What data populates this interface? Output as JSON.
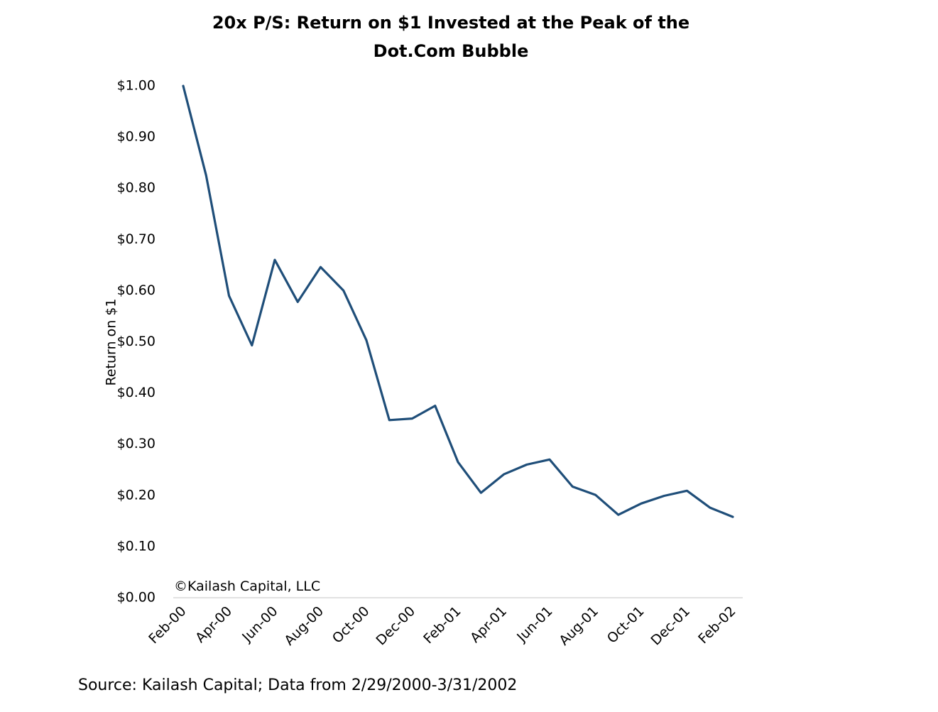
{
  "chart_data": {
    "type": "line",
    "title_lines": [
      "20x P/S: Return on $1 Invested at the Peak of the",
      "Dot.Com Bubble"
    ],
    "ylabel": "Return on $1",
    "ylim": [
      0,
      1.0
    ],
    "y_ticks": [
      "$0.00",
      "$0.10",
      "$0.20",
      "$0.30",
      "$0.40",
      "$0.50",
      "$0.60",
      "$0.70",
      "$0.80",
      "$0.90",
      "$1.00"
    ],
    "y_tick_values": [
      0,
      0.1,
      0.2,
      0.3,
      0.4,
      0.5,
      0.6,
      0.7,
      0.8,
      0.9,
      1.0
    ],
    "x": [
      "Feb-00",
      "Mar-00",
      "Apr-00",
      "May-00",
      "Jun-00",
      "Jul-00",
      "Aug-00",
      "Sep-00",
      "Oct-00",
      "Nov-00",
      "Dec-00",
      "Jan-01",
      "Feb-01",
      "Mar-01",
      "Apr-01",
      "May-01",
      "Jun-01",
      "Jul-01",
      "Aug-01",
      "Sep-01",
      "Oct-01",
      "Nov-01",
      "Dec-01",
      "Jan-02",
      "Feb-02"
    ],
    "x_tick_labels": [
      "Feb-00",
      "Apr-00",
      "Jun-00",
      "Aug-00",
      "Oct-00",
      "Dec-00",
      "Feb-01",
      "Apr-01",
      "Jun-01",
      "Aug-01",
      "Oct-01",
      "Dec-01",
      "Feb-02"
    ],
    "series": [
      {
        "values": [
          1.0,
          0.825,
          0.59,
          0.493,
          0.66,
          0.578,
          0.646,
          0.6,
          0.503,
          0.347,
          0.35,
          0.375,
          0.265,
          0.205,
          0.241,
          0.26,
          0.27,
          0.217,
          0.201,
          0.162,
          0.184,
          0.199,
          0.209,
          0.176,
          0.158
        ],
        "color": "#1f4e79"
      }
    ],
    "grid": false,
    "legend": "none",
    "annotation": "©Kailash Capital, LLC"
  },
  "source_note": "Source: Kailash Capital; Data from 2/29/2000-3/31/2002"
}
